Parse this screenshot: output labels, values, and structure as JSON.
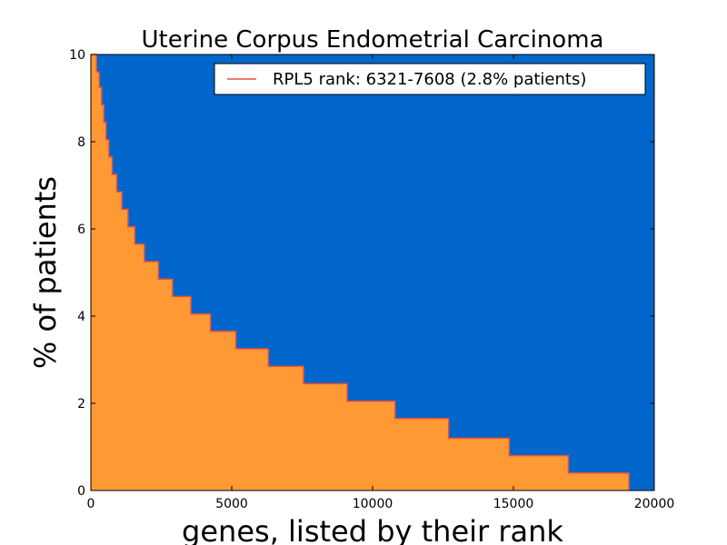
{
  "chart_data": {
    "type": "area",
    "title": "Uterine Corpus Endometrial Carcinoma",
    "xlabel": "genes, listed by their rank",
    "ylabel": "% of patients",
    "xlim": [
      0,
      20000
    ],
    "ylim": [
      0,
      10
    ],
    "xticks": [
      "0",
      "5000",
      "10000",
      "15000",
      "20000"
    ],
    "yticks": [
      "0",
      "2",
      "4",
      "6",
      "8",
      "10"
    ],
    "grid": false,
    "legend": {
      "placement": "top-right",
      "entries": [
        "RPL5 rank:   6321-7608  (2.8% patients)"
      ]
    },
    "colors": {
      "background": "#0066cc",
      "fill": "#ff9933",
      "line": "#e8503a"
    },
    "series": [
      {
        "steps": [
          {
            "x0": 0,
            "x1": 200,
            "y": 10.0
          },
          {
            "x0": 200,
            "x1": 300,
            "y": 9.6
          },
          {
            "x0": 300,
            "x1": 380,
            "y": 9.25
          },
          {
            "x0": 380,
            "x1": 460,
            "y": 8.85
          },
          {
            "x0": 460,
            "x1": 540,
            "y": 8.45
          },
          {
            "x0": 540,
            "x1": 640,
            "y": 8.05
          },
          {
            "x0": 640,
            "x1": 760,
            "y": 7.65
          },
          {
            "x0": 760,
            "x1": 920,
            "y": 7.25
          },
          {
            "x0": 920,
            "x1": 1100,
            "y": 6.85
          },
          {
            "x0": 1100,
            "x1": 1320,
            "y": 6.45
          },
          {
            "x0": 1320,
            "x1": 1560,
            "y": 6.05
          },
          {
            "x0": 1560,
            "x1": 1900,
            "y": 5.65
          },
          {
            "x0": 1900,
            "x1": 2400,
            "y": 5.25
          },
          {
            "x0": 2400,
            "x1": 2900,
            "y": 4.85
          },
          {
            "x0": 2900,
            "x1": 3550,
            "y": 4.45
          },
          {
            "x0": 3550,
            "x1": 4250,
            "y": 4.05
          },
          {
            "x0": 4250,
            "x1": 5150,
            "y": 3.65
          },
          {
            "x0": 5150,
            "x1": 6300,
            "y": 3.25
          },
          {
            "x0": 6300,
            "x1": 7550,
            "y": 2.85
          },
          {
            "x0": 7550,
            "x1": 9100,
            "y": 2.45
          },
          {
            "x0": 9100,
            "x1": 10800,
            "y": 2.05
          },
          {
            "x0": 10800,
            "x1": 12700,
            "y": 1.65
          },
          {
            "x0": 12700,
            "x1": 14850,
            "y": 1.2
          },
          {
            "x0": 14850,
            "x1": 16950,
            "y": 0.8
          },
          {
            "x0": 16950,
            "x1": 19100,
            "y": 0.4
          }
        ]
      }
    ]
  }
}
